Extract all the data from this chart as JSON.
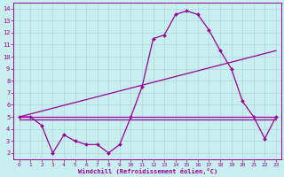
{
  "background_color": "#c8eef0",
  "grid_color": "#aad8dc",
  "line_color": "#990099",
  "xlim": [
    -0.5,
    23.5
  ],
  "ylim": [
    1.5,
    14.5
  ],
  "xticks": [
    0,
    1,
    2,
    3,
    4,
    5,
    6,
    7,
    8,
    9,
    10,
    11,
    12,
    13,
    14,
    15,
    16,
    17,
    18,
    19,
    20,
    21,
    22,
    23
  ],
  "yticks": [
    2,
    3,
    4,
    5,
    6,
    7,
    8,
    9,
    10,
    11,
    12,
    13,
    14
  ],
  "xlabel": "Windchill (Refroidissement éolien,°C)",
  "series_main": {
    "x": [
      0,
      1,
      2,
      3,
      4,
      5,
      6,
      7,
      8,
      9,
      10,
      11,
      12,
      13,
      14,
      15,
      16,
      17,
      18,
      19,
      20,
      21,
      22,
      23
    ],
    "y": [
      5.0,
      5.0,
      4.3,
      2.0,
      3.5,
      3.0,
      2.7,
      2.7,
      2.0,
      2.7,
      5.0,
      7.5,
      11.5,
      11.8,
      13.5,
      13.8,
      13.5,
      12.2,
      10.5,
      9.0,
      6.3,
      5.0,
      3.2,
      5.0
    ]
  },
  "series_line1": {
    "x": [
      0,
      23
    ],
    "y": [
      5.0,
      10.5
    ]
  },
  "series_line2": {
    "x": [
      0,
      23
    ],
    "y": [
      5.0,
      5.0
    ]
  },
  "series_line3": {
    "x": [
      0,
      23
    ],
    "y": [
      4.8,
      4.8
    ]
  }
}
